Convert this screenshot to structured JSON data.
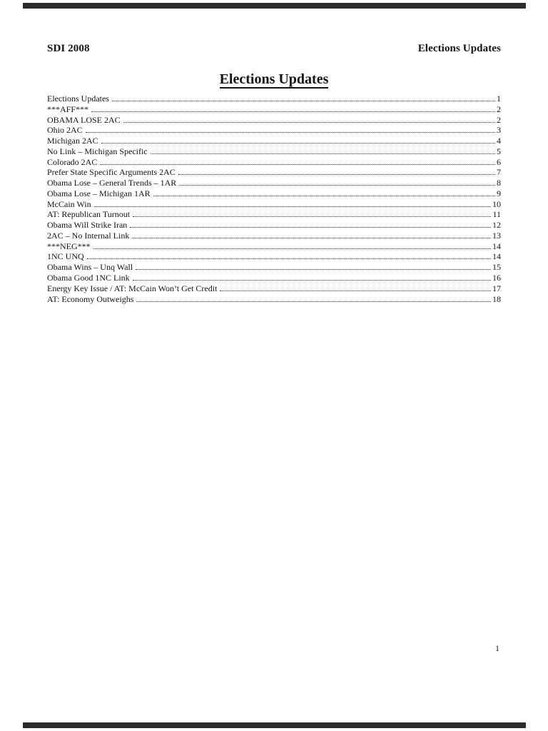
{
  "header": {
    "left": "SDI 2008",
    "right": "Elections Updates"
  },
  "title": "Elections Updates",
  "toc": {
    "entries": [
      {
        "label": "Elections Updates",
        "page": "1"
      },
      {
        "label": "***AFF***",
        "page": "2"
      },
      {
        "label": "OBAMA LOSE 2AC",
        "page": "2"
      },
      {
        "label": "Ohio 2AC",
        "page": "3"
      },
      {
        "label": "Michigan 2AC",
        "page": "4"
      },
      {
        "label": "No Link – Michigan Specific",
        "page": "5"
      },
      {
        "label": "Colorado 2AC",
        "page": "6"
      },
      {
        "label": "Prefer State Specific Arguments 2AC",
        "page": "7"
      },
      {
        "label": "Obama Lose – General Trends – 1AR",
        "page": "8"
      },
      {
        "label": "Obama Lose – Michigan 1AR",
        "page": "9"
      },
      {
        "label": "McCain Win",
        "page": "10"
      },
      {
        "label": "AT: Republican Turnout",
        "page": "11"
      },
      {
        "label": "Obama Will Strike Iran",
        "page": "12"
      },
      {
        "label": "2AC – No Internal Link",
        "page": "13"
      },
      {
        "label": "***NEG***",
        "page": "14"
      },
      {
        "label": "1NC UNQ",
        "page": "14"
      },
      {
        "label": "Obama Wins – Unq Wall",
        "page": "15"
      },
      {
        "label": "Obama Good 1NC Link",
        "page": "16"
      },
      {
        "label": "Energy Key Issue / AT: McCain Won’t Get Credit",
        "page": "17"
      },
      {
        "label": "AT: Economy Outweighs",
        "page": "18"
      }
    ]
  },
  "footer": {
    "page_number": "1"
  },
  "colors": {
    "page_background": "#ffffff",
    "text": "#131313",
    "edge_bar": "#2a2a2a"
  }
}
